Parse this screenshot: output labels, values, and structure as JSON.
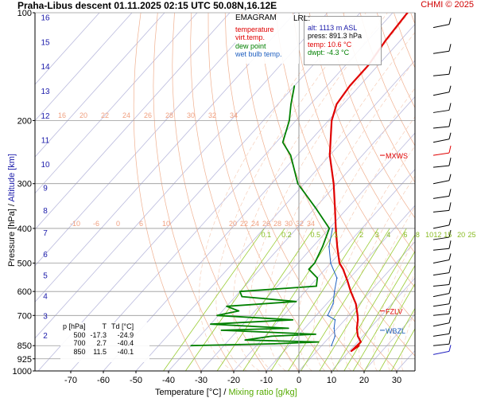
{
  "header": {
    "title": "Praha-Libus   descent   01.11.2025 02:15 UTC  50.08N,16.12E",
    "copyright": "CHMI © 2025"
  },
  "legend": {
    "diagram": "EMAGRAM",
    "items": [
      {
        "label": "temperature",
        "color": "#e00000"
      },
      {
        "label": "virt.temp.",
        "color": "#e00000"
      },
      {
        "label": "dew point",
        "color": "#008000"
      },
      {
        "label": "wet bulb temp.",
        "color": "#2060c0"
      }
    ]
  },
  "lrl": {
    "title": "LRL:",
    "alt": "alt: 1113 m ASL",
    "press": "press: 891.3 hPa",
    "temp": "temp: 10.6 °C",
    "dwpt": "dwpt: -4.3 °C"
  },
  "table": {
    "headers": [
      "p [hPa]",
      "T",
      "Td [°C]"
    ],
    "rows": [
      [
        "500",
        "-17.3",
        "-24.9"
      ],
      [
        "700",
        "2.7",
        "-40.4"
      ],
      [
        "850",
        "11.5",
        "-40.1"
      ]
    ]
  },
  "axes": {
    "xlabel_main": "Temperature [°C]",
    "xlabel_sep": "/",
    "xlabel_mixing": "Mixing ratio [g/kg]",
    "ylabel_main": "Pressure [hPa]",
    "ylabel_sep": "/",
    "ylabel_alt": "Altitude [km]"
  },
  "colors": {
    "temperature": "#e00000",
    "dewpoint": "#008000",
    "wetbulb": "#2060c0",
    "isotherm": "#bbbbdd",
    "dry_adiabat": "#f0b090",
    "moist_adiabat": "#f5c8b0",
    "mixing_ratio": "#99cc33",
    "altitude": "#1a1aaa",
    "marker": "#e00000"
  },
  "chart_data": {
    "type": "line",
    "diagram": "emagram",
    "y_scale": "log-pressure",
    "xlim": [
      -80,
      30
    ],
    "ylim": [
      1000,
      100
    ],
    "x_ticks": [
      "-70",
      "-60",
      "-50",
      "-40",
      "-30",
      "-20",
      "-10",
      "0",
      "10",
      "20",
      "30"
    ],
    "y_ticks": [
      "100",
      "200",
      "300",
      "400",
      "500",
      "600",
      "700",
      "850",
      "925",
      "1000"
    ],
    "altitude_ticks": [
      "2",
      "3",
      "4",
      "5",
      "6",
      "7",
      "8",
      "9",
      "10",
      "11",
      "12",
      "13",
      "14",
      "15",
      "16"
    ],
    "mixing_ratio_labels": [
      "0.1",
      "0.2",
      "0.5",
      "1",
      "2",
      "3",
      "4",
      "6",
      "8",
      "10",
      "12",
      "15",
      "20",
      "25"
    ],
    "adiabat_labels_upper": [
      "16",
      "20",
      "22",
      "24",
      "26",
      "28",
      "30",
      "32",
      "34"
    ],
    "adiabat_labels_lower": [
      "-10",
      "-6",
      "0",
      "6",
      "10",
      "20",
      "22",
      "24",
      "26",
      "28",
      "30",
      "32",
      "34"
    ],
    "markers": [
      {
        "label": "MXWS",
        "p": 250,
        "t": 16
      },
      {
        "label": "FZLV",
        "p": 680,
        "t": 18
      },
      {
        "label": "WBZL",
        "p": 770,
        "t": 20
      }
    ],
    "series": [
      {
        "name": "temperature",
        "points": [
          [
            850,
            11.5
          ],
          [
            880,
            10.6
          ],
          [
            830,
            11.0
          ],
          [
            800,
            8.5
          ],
          [
            760,
            6.0
          ],
          [
            720,
            4.0
          ],
          [
            700,
            2.7
          ],
          [
            650,
            -1.0
          ],
          [
            600,
            -6.0
          ],
          [
            560,
            -10.0
          ],
          [
            520,
            -14.5
          ],
          [
            500,
            -17.3
          ],
          [
            450,
            -22.5
          ],
          [
            400,
            -28.0
          ],
          [
            350,
            -34.0
          ],
          [
            300,
            -41.0
          ],
          [
            250,
            -50.0
          ],
          [
            200,
            -59.0
          ],
          [
            180,
            -62.0
          ],
          [
            160,
            -63.0
          ],
          [
            140,
            -63.0
          ],
          [
            120,
            -64.5
          ],
          [
            100,
            -65.5
          ]
        ]
      },
      {
        "name": "dew point",
        "points": [
          [
            850,
            -40.1
          ],
          [
            840,
            -15.0
          ],
          [
            830,
            -2.0
          ],
          [
            820,
            -25.0
          ],
          [
            800,
            -18.0
          ],
          [
            790,
            -5.0
          ],
          [
            770,
            -35.0
          ],
          [
            760,
            -15.0
          ],
          [
            740,
            -40.0
          ],
          [
            720,
            -16.0
          ],
          [
            700,
            -40.4
          ],
          [
            680,
            -35.0
          ],
          [
            660,
            -40.0
          ],
          [
            640,
            -20.0
          ],
          [
            620,
            -38.0
          ],
          [
            600,
            -40.0
          ],
          [
            580,
            -18.0
          ],
          [
            550,
            -20.0
          ],
          [
            520,
            -25.0
          ],
          [
            500,
            -24.9
          ],
          [
            450,
            -27.0
          ],
          [
            400,
            -30.0
          ],
          [
            350,
            -40.0
          ],
          [
            300,
            -52.0
          ],
          [
            250,
            -62.0
          ],
          [
            230,
            -68.0
          ],
          [
            200,
            -72.0
          ],
          [
            180,
            -76.0
          ],
          [
            160,
            -80.0
          ]
        ]
      },
      {
        "name": "wet bulb temp.",
        "points": [
          [
            850,
            3.0
          ],
          [
            800,
            1.5
          ],
          [
            760,
            -1.0
          ],
          [
            720,
            -3.0
          ],
          [
            700,
            -6.5
          ],
          [
            650,
            -8.0
          ],
          [
            600,
            -11.0
          ],
          [
            550,
            -14.0
          ],
          [
            500,
            -20.0
          ],
          [
            450,
            -25.0
          ],
          [
            400,
            -29.0
          ]
        ]
      }
    ]
  }
}
